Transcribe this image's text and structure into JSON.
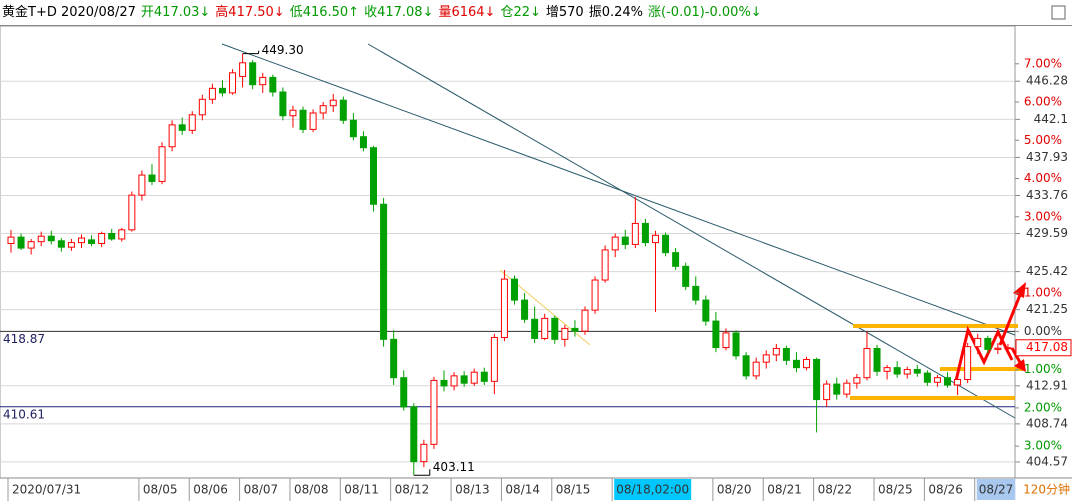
{
  "header": {
    "symbol": "黄金T+D 2020/08/27",
    "items": [
      {
        "text": "开417.03↓",
        "color": "#009900"
      },
      {
        "text": "高417.50↓",
        "color": "#e00000"
      },
      {
        "text": "低416.50↑",
        "color": "#009900"
      },
      {
        "text": "收417.08↓",
        "color": "#009900"
      },
      {
        "text": "量6164↓",
        "color": "#e00000"
      },
      {
        "text": "仓22↓",
        "color": "#009900"
      },
      {
        "text": "增570",
        "color": "#000000"
      },
      {
        "text": "振0.24%",
        "color": "#000000"
      },
      {
        "text": "涨(-0.01)-0.00%↓",
        "color": "#009900"
      }
    ]
  },
  "chart_data": {
    "type": "candlestick",
    "period": "120分钟",
    "up_color": "#ff0000",
    "down_color": "#00a000",
    "ylim": [
      402.81,
      452.33
    ],
    "yticks": [
      404.57,
      408.74,
      412.91,
      421.25,
      425.42,
      429.59,
      433.76,
      437.93,
      442.1,
      446.28
    ],
    "pct_ticks": [
      {
        "value": 448.19,
        "label": "7.00%"
      },
      {
        "value": 444.0,
        "label": "6.00%"
      },
      {
        "value": 439.81,
        "label": "5.00%"
      },
      {
        "value": 435.62,
        "label": "4.00%"
      },
      {
        "value": 431.43,
        "label": "3.00%"
      },
      {
        "value": 423.06,
        "label": "1.00%"
      },
      {
        "value": 418.87,
        "label": "0.00%"
      },
      {
        "value": 414.68,
        "label": "1.00%"
      },
      {
        "value": 410.49,
        "label": "2.00%"
      },
      {
        "value": 406.3,
        "label": "3.00%"
      }
    ],
    "price_lines": [
      418.87,
      410.61
    ],
    "annotations": {
      "high": "449.30",
      "low": "403.11"
    },
    "grid": true,
    "categories": [
      "2020/07/31",
      null,
      null,
      null,
      null,
      null,
      null,
      null,
      null,
      null,
      null,
      null,
      null,
      "08/05",
      null,
      null,
      null,
      null,
      "08/06",
      null,
      null,
      null,
      null,
      "08/07",
      null,
      null,
      null,
      null,
      "08/08",
      null,
      null,
      null,
      null,
      "08/11",
      null,
      null,
      null,
      null,
      "08/12",
      null,
      null,
      null,
      null,
      null,
      "08/13",
      null,
      null,
      null,
      null,
      "08/14",
      null,
      null,
      null,
      null,
      "08/15",
      null,
      null,
      null,
      null,
      null,
      "08/18,02:00",
      null,
      null,
      null,
      null,
      null,
      null,
      null,
      null,
      null,
      "08/20",
      null,
      null,
      null,
      null,
      "08/21",
      null,
      null,
      null,
      null,
      "08/22",
      null,
      null,
      null,
      null,
      null,
      "08/25",
      null,
      null,
      null,
      null,
      "08/26",
      null,
      null,
      null,
      null,
      "08/27",
      null,
      null,
      null
    ],
    "open": [
      428.5,
      429.2,
      428.0,
      428.7,
      429.3,
      428.8,
      428.1,
      428.6,
      428.9,
      428.5,
      429.6,
      429.0,
      430.0,
      433.8,
      436.0,
      435.3,
      439.1,
      441.5,
      440.9,
      442.6,
      444.3,
      445.5,
      445.0,
      446.8,
      448.3,
      445.9,
      446.7,
      445.1,
      442.5,
      443.1,
      441.0,
      442.8,
      443.6,
      444.2,
      442.0,
      440.2,
      439.0,
      432.8,
      418.0,
      413.8,
      410.6,
      404.6,
      406.5,
      413.5,
      412.9,
      414.0,
      413.2,
      414.4,
      413.4,
      418.2,
      424.6,
      422.3,
      420.2,
      418.1,
      420.3,
      418.0,
      419.2,
      418.9,
      421.2,
      424.5,
      427.8,
      429.2,
      428.4,
      430.7,
      428.6,
      429.4,
      427.5,
      426.0,
      423.8,
      422.3,
      420.0,
      417.1,
      418.7,
      416.2,
      414.0,
      415.5,
      416.3,
      417.0,
      415.7,
      414.9,
      415.8,
      411.4,
      413.1,
      412.0,
      413.2,
      413.8,
      417.0,
      414.5,
      414.9,
      414.2,
      414.7,
      414.3,
      413.3,
      413.8,
      413.0,
      413.6,
      417.2,
      418.1,
      416.9,
      417.03
    ],
    "high": [
      430.0,
      429.6,
      429.0,
      429.8,
      429.9,
      429.1,
      429.0,
      429.5,
      429.4,
      429.8,
      430.1,
      430.2,
      434.2,
      436.5,
      437.2,
      439.6,
      442.0,
      442.3,
      443.0,
      444.8,
      446.0,
      446.4,
      447.6,
      449.3,
      448.6,
      447.2,
      447.0,
      445.6,
      443.6,
      443.5,
      443.2,
      444.0,
      444.9,
      444.6,
      442.8,
      440.8,
      439.2,
      433.5,
      419.0,
      414.6,
      411.0,
      407.0,
      413.9,
      414.6,
      414.4,
      414.5,
      414.8,
      414.9,
      418.6,
      425.6,
      425.0,
      423.1,
      421.6,
      420.8,
      420.6,
      419.6,
      420.1,
      421.6,
      424.9,
      428.3,
      429.6,
      430.0,
      433.6,
      431.2,
      429.9,
      429.7,
      428.0,
      426.4,
      424.9,
      422.8,
      421.0,
      419.2,
      419.0,
      416.6,
      416.0,
      416.8,
      417.5,
      417.3,
      416.6,
      416.1,
      416.0,
      413.5,
      413.8,
      413.6,
      414.2,
      418.9,
      417.4,
      415.2,
      415.6,
      415.0,
      415.2,
      414.6,
      414.1,
      414.4,
      414.0,
      417.6,
      418.6,
      418.4,
      417.6,
      417.5
    ],
    "low": [
      427.5,
      427.8,
      427.3,
      428.2,
      428.4,
      427.6,
      427.7,
      428.0,
      428.2,
      428.1,
      428.8,
      428.7,
      429.8,
      433.2,
      434.9,
      435.0,
      438.6,
      440.4,
      440.5,
      442.0,
      443.8,
      444.6,
      444.8,
      445.6,
      445.4,
      445.0,
      444.6,
      442.0,
      441.2,
      440.6,
      440.7,
      442.1,
      442.9,
      441.6,
      439.8,
      438.6,
      432.0,
      417.2,
      413.0,
      410.2,
      403.11,
      404.0,
      406.0,
      412.3,
      412.4,
      412.8,
      412.9,
      413.0,
      412.0,
      417.8,
      421.8,
      419.8,
      417.6,
      417.9,
      417.5,
      417.2,
      418.3,
      418.5,
      420.8,
      424.2,
      427.0,
      427.9,
      428.0,
      428.2,
      421.0,
      427.1,
      425.6,
      423.4,
      421.8,
      419.5,
      416.6,
      416.8,
      415.8,
      413.6,
      413.6,
      414.8,
      415.6,
      415.2,
      414.4,
      414.6,
      407.8,
      410.6,
      411.4,
      411.6,
      412.6,
      413.5,
      414.0,
      413.6,
      413.8,
      413.7,
      413.9,
      412.9,
      412.8,
      412.7,
      411.9,
      413.2,
      416.4,
      416.5,
      416.4,
      416.5
    ],
    "close": [
      429.2,
      428.0,
      428.7,
      429.3,
      428.8,
      428.1,
      428.6,
      429.1,
      428.5,
      429.6,
      429.0,
      430.0,
      433.8,
      436.0,
      435.3,
      439.1,
      441.5,
      440.9,
      442.6,
      444.3,
      445.5,
      445.0,
      447.2,
      448.3,
      445.9,
      446.7,
      445.1,
      442.5,
      443.1,
      441.0,
      442.8,
      443.6,
      444.2,
      442.0,
      440.2,
      439.0,
      432.8,
      418.0,
      413.8,
      410.6,
      404.6,
      406.5,
      413.5,
      412.9,
      414.0,
      413.2,
      414.4,
      413.4,
      418.2,
      424.6,
      422.3,
      420.2,
      418.1,
      420.3,
      418.0,
      419.2,
      418.9,
      421.2,
      424.5,
      427.8,
      429.2,
      428.4,
      430.7,
      428.6,
      429.4,
      427.5,
      426.0,
      423.8,
      422.3,
      420.0,
      417.1,
      418.7,
      416.2,
      414.0,
      415.5,
      416.3,
      417.0,
      415.7,
      414.9,
      415.8,
      411.4,
      413.1,
      412.0,
      413.2,
      413.8,
      417.0,
      414.5,
      414.9,
      414.2,
      414.7,
      414.3,
      413.3,
      413.8,
      413.0,
      413.6,
      417.2,
      418.1,
      416.9,
      417.03,
      417.08
    ]
  }
}
